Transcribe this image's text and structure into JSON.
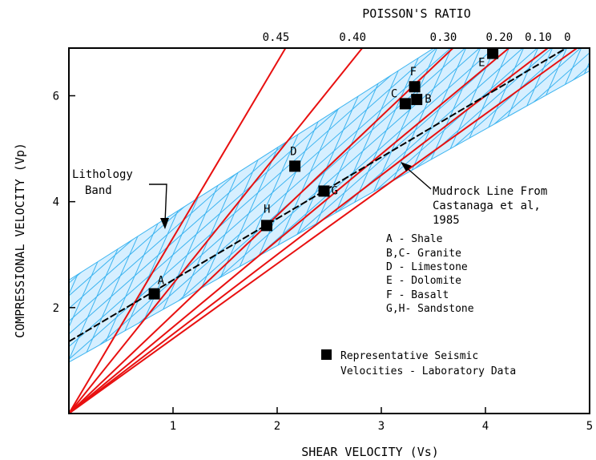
{
  "chart_data": {
    "type": "scatter",
    "title": "POISSON'S RATIO",
    "xlabel": "SHEAR VELOCITY (Vs)",
    "ylabel": "COMPRESSIONAL VELOCITY (Vp)",
    "xlim": [
      0,
      5
    ],
    "ylim": [
      0,
      6.9
    ],
    "x_ticks": [
      "1",
      "2",
      "3",
      "4",
      "5"
    ],
    "x_tick_values": [
      1,
      2,
      3,
      4,
      5
    ],
    "y_ticks": [
      "2",
      "4",
      "6"
    ],
    "y_tick_values": [
      2,
      4,
      6
    ],
    "grid": false,
    "colors": {
      "band_fill": "#d6efff",
      "band_mesh": "#3cb4f0",
      "ratio_lines": "#e81010",
      "mudrock_line": "#000000",
      "points": "#000000"
    },
    "poisson_lines": [
      {
        "label": "0.45",
        "ratio": 0.45
      },
      {
        "label": "0.40",
        "ratio": 0.4
      },
      {
        "label": "0.30",
        "ratio": 0.3
      },
      {
        "label": "0.20",
        "ratio": 0.2
      },
      {
        "label": "0.10",
        "ratio": 0.1
      },
      {
        "label": "0",
        "ratio": 0.0
      }
    ],
    "points": [
      {
        "label": "A",
        "x": 0.82,
        "y": 2.26
      },
      {
        "label": "H",
        "x": 1.9,
        "y": 3.55
      },
      {
        "label": "D",
        "x": 2.17,
        "y": 4.67
      },
      {
        "label": "G",
        "x": 2.45,
        "y": 4.2
      },
      {
        "label": "C",
        "x": 3.23,
        "y": 5.85
      },
      {
        "label": "B",
        "x": 3.34,
        "y": 5.93
      },
      {
        "label": "F",
        "x": 3.32,
        "y": 6.17
      },
      {
        "label": "E",
        "x": 4.07,
        "y": 6.8
      }
    ],
    "mudrock_line": {
      "slope": 1.16,
      "intercept": 1.36
    },
    "lithology_band": {
      "lower_intercept": 0.97,
      "upper_intercept": 2.52,
      "upper_slope": 1.25,
      "lower_slope": 1.1
    },
    "annotations": {
      "lithology_band": [
        "Lithology",
        "Band"
      ],
      "mudrock": [
        "Mudrock Line From",
        "Castanaga et al,",
        "1985"
      ]
    },
    "legend_entries": [
      "A - Shale",
      "B,C- Granite",
      "D - Limestone",
      "E - Dolomite",
      "F - Basalt",
      "G,H- Sandstone"
    ],
    "marker_legend": [
      "Representative Seismic",
      "Velocities - Laboratory Data"
    ]
  }
}
